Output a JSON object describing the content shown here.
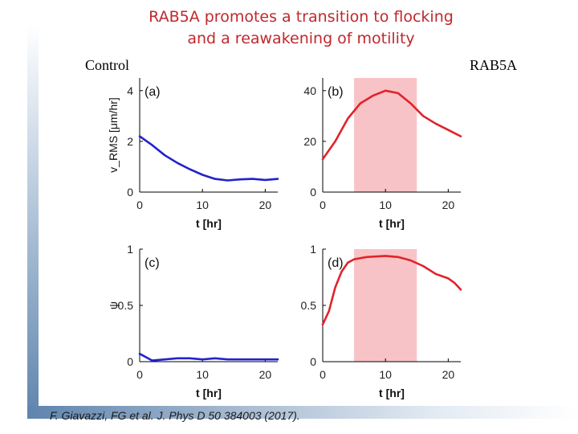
{
  "title": {
    "line1": "RAB5A promotes a transition to flocking",
    "line2": "and a reawakening of motility"
  },
  "labels": {
    "control": "Control",
    "rab5a": "RAB5A"
  },
  "citation": "F. Giavazzi, FG et al. J. Phys D 50 384003 (2017).",
  "colors": {
    "control": "#2222cc",
    "rab5a": "#e0232a",
    "shade": "#f8c3c6",
    "title": "#c0282d"
  },
  "chart_data": [
    {
      "panel": "(a)",
      "type": "line",
      "series_name": "Control",
      "xlabel": "t [hr]",
      "ylabel": "v_RMS [μm/hr]",
      "xlim": [
        0,
        22
      ],
      "ylim": [
        0,
        4.5
      ],
      "xticks": [
        "0",
        "10",
        "20"
      ],
      "yticks": [
        "0",
        "2",
        "4"
      ],
      "x": [
        0,
        2,
        4,
        6,
        8,
        10,
        12,
        14,
        16,
        18,
        20,
        22
      ],
      "y": [
        2.2,
        1.85,
        1.45,
        1.15,
        0.9,
        0.68,
        0.52,
        0.46,
        0.5,
        0.52,
        0.48,
        0.52
      ]
    },
    {
      "panel": "(b)",
      "type": "line",
      "series_name": "RAB5A",
      "xlabel": "t [hr]",
      "ylabel": "",
      "xlim": [
        0,
        22
      ],
      "ylim": [
        0,
        45
      ],
      "xticks": [
        "0",
        "10",
        "20"
      ],
      "yticks": [
        "0",
        "20",
        "40"
      ],
      "shaded_x": [
        5,
        15
      ],
      "x": [
        0,
        2,
        4,
        6,
        8,
        10,
        12,
        14,
        16,
        18,
        20,
        22
      ],
      "y": [
        13,
        20,
        29,
        35,
        38,
        40,
        39,
        35,
        30,
        27,
        24.5,
        22
      ]
    },
    {
      "panel": "(c)",
      "type": "line",
      "series_name": "Control",
      "xlabel": "t [hr]",
      "ylabel": "ψ",
      "xlim": [
        0,
        22
      ],
      "ylim": [
        0,
        1
      ],
      "xticks": [
        "0",
        "10",
        "20"
      ],
      "yticks": [
        "0",
        "0.5",
        "1"
      ],
      "x": [
        0,
        1,
        2,
        4,
        6,
        8,
        10,
        12,
        14,
        16,
        18,
        20,
        22
      ],
      "y": [
        0.07,
        0.04,
        0.01,
        0.02,
        0.03,
        0.03,
        0.02,
        0.03,
        0.02,
        0.02,
        0.02,
        0.02,
        0.02
      ]
    },
    {
      "panel": "(d)",
      "type": "line",
      "series_name": "RAB5A",
      "xlabel": "t [hr]",
      "ylabel": "",
      "xlim": [
        0,
        22
      ],
      "ylim": [
        0,
        1
      ],
      "xticks": [
        "0",
        "10",
        "20"
      ],
      "yticks": [
        "0",
        "0.5",
        "1"
      ],
      "shaded_x": [
        5,
        15
      ],
      "x": [
        0,
        1,
        2,
        3,
        4,
        5,
        7,
        10,
        12,
        14,
        16,
        18,
        20,
        21,
        22
      ],
      "y": [
        0.33,
        0.45,
        0.66,
        0.8,
        0.88,
        0.91,
        0.93,
        0.94,
        0.93,
        0.9,
        0.85,
        0.78,
        0.74,
        0.7,
        0.64
      ]
    }
  ]
}
